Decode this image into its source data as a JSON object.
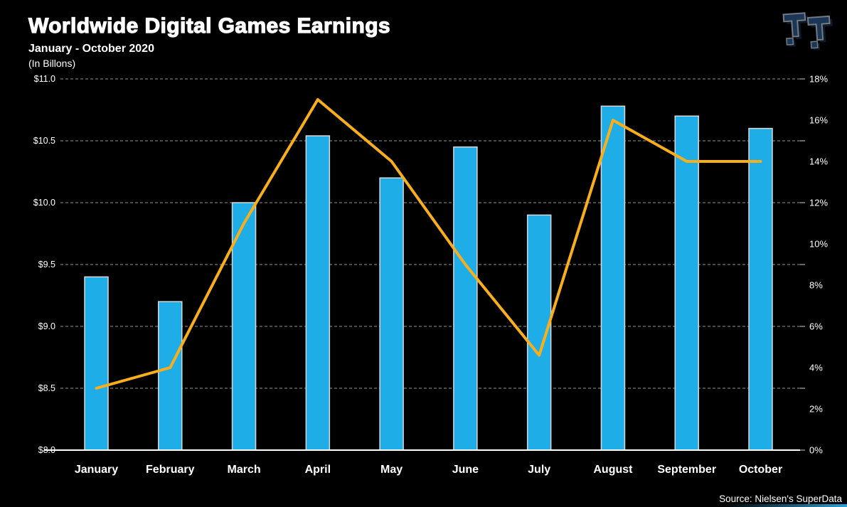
{
  "header": {
    "title": "Worldwide Digital Games Earnings",
    "subtitle": "January - October 2020",
    "units": "(In Billons)"
  },
  "footer": {
    "source": "Source: Nielsen's SuperData"
  },
  "logo": {
    "letters": "TT"
  },
  "colors": {
    "background": "#000000",
    "bar_fill": "#1FADE8",
    "bar_border": "#D8D8D8",
    "line": "#F9AE1B",
    "gridline": "#979797",
    "axis": "#FFFFFF",
    "text": "#FFFFFF",
    "logo_face": "#1F3E63",
    "logo_shadow": "#0E1E33",
    "logo_outline": "#868C93",
    "bottom_strip": "#2D9FD8"
  },
  "chart_data": {
    "type": "combo_bar_line",
    "title": "Worldwide Digital Games Earnings",
    "subtitle": "January - October 2020",
    "units": "In Billions (USD)",
    "categories": [
      "January",
      "February",
      "March",
      "April",
      "May",
      "June",
      "July",
      "August",
      "September",
      "October"
    ],
    "series": [
      {
        "name": "earnings_usd_billions",
        "type": "bar",
        "axis": "left",
        "values": [
          9.4,
          9.2,
          10.0,
          10.54,
          10.2,
          10.45,
          9.9,
          10.78,
          10.7,
          10.6
        ]
      },
      {
        "name": "yoy_growth_percent",
        "type": "line",
        "axis": "right",
        "values": [
          3,
          4,
          11,
          17,
          14,
          9,
          4.6,
          16,
          14,
          14
        ]
      }
    ],
    "left_axis": {
      "min": 8.0,
      "max": 11.0,
      "step": 0.5,
      "tick_labels": [
        "$8.0",
        "$8.5",
        "$9.0",
        "$9.5",
        "$10.0",
        "$10.5",
        "$11.0"
      ]
    },
    "right_axis": {
      "min": 0,
      "max": 18,
      "step": 2,
      "tick_labels": [
        "0%",
        "2%",
        "4%",
        "6%",
        "8%",
        "10%",
        "12%",
        "14%",
        "16%",
        "18%"
      ]
    },
    "grid": {
      "horizontal": "dashed",
      "aligned_to": "left_axis_ticks"
    },
    "legend": "none"
  }
}
